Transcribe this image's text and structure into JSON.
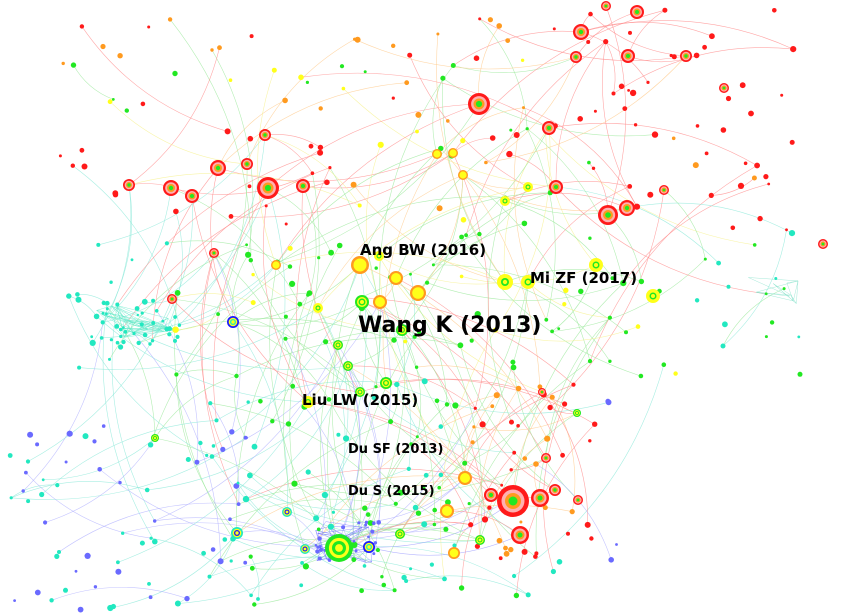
{
  "network": {
    "labels": [
      {
        "id": "wang",
        "text": "Wang K (2013)"
      },
      {
        "id": "ang",
        "text": "Ang BW (2016)"
      },
      {
        "id": "mi",
        "text": "Mi ZF (2017)"
      },
      {
        "id": "liu",
        "text": "Liu LW (2015)"
      },
      {
        "id": "dusf",
        "text": "Du SF (2013)"
      },
      {
        "id": "dus",
        "text": "Du S (2015)"
      }
    ],
    "palette": {
      "red": "#ff1a1a",
      "orange": "#ff9a1f",
      "yellow": "#ffff1a",
      "green": "#22e822",
      "cyan": "#22e8c0",
      "blue": "#1a1aff",
      "purple": "#6a6aff",
      "ring_light": "#ffb0b0"
    }
  }
}
